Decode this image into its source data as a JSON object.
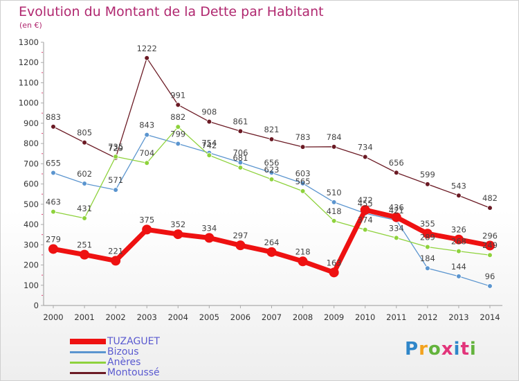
{
  "title": "Evolution du Montant de la Dette par Habitant",
  "unit": "(en €)",
  "logo": {
    "text": "Proxiti",
    "colors": [
      "#2f86c9",
      "#f3a21e",
      "#63b33c",
      "#e2347a",
      "#2f86c9",
      "#e2347a",
      "#63b33c"
    ]
  },
  "chart_data": {
    "type": "line",
    "title": "Evolution du Montant de la Dette par Habitant",
    "ylabel": "(en €)",
    "xlabel": "",
    "x": [
      "2000",
      "2001",
      "2002",
      "2003",
      "2004",
      "2005",
      "2006",
      "2007",
      "2008",
      "2009",
      "2010",
      "2011",
      "2012",
      "2013",
      "2014"
    ],
    "ylim": [
      0,
      1300
    ],
    "yticks": [
      "0",
      "100",
      "200",
      "300",
      "400",
      "500",
      "600",
      "700",
      "800",
      "900",
      "1000",
      "1100",
      "1200",
      "1300"
    ],
    "grid": false,
    "legend": "bottom-left",
    "series": [
      {
        "name": "Montoussé",
        "color": "#6b1a24",
        "values": [
          883,
          805,
          729,
          1222,
          991,
          908,
          861,
          821,
          783,
          784,
          734,
          656,
          599,
          543,
          482
        ]
      },
      {
        "name": "Bizous",
        "color": "#5b95cf",
        "values": [
          655,
          602,
          571,
          843,
          799,
          754,
          706,
          656,
          603,
          510,
          455,
          421,
          184,
          144,
          96
        ]
      },
      {
        "name": "Anères",
        "color": "#8ed23c",
        "values": [
          463,
          431,
          735,
          704,
          882,
          742,
          681,
          623,
          565,
          418,
          374,
          334,
          289,
          268,
          249
        ]
      },
      {
        "name": "TUZAGUET",
        "color": "#ee1111",
        "values": [
          279,
          251,
          221,
          375,
          352,
          334,
          297,
          264,
          218,
          163,
          472,
          436,
          355,
          326,
          296
        ]
      }
    ],
    "data_labels": {
      "Montoussé": [
        "883",
        "805",
        "729",
        "1222",
        "991",
        "908",
        "861",
        "821",
        "783",
        "784",
        "734",
        "656",
        "599",
        "543",
        "482"
      ],
      "Bizous": [
        "655",
        "602",
        "571",
        "843",
        "799",
        "754",
        "706",
        "656",
        "603",
        "510",
        "455",
        "421",
        "184",
        "144",
        "96"
      ],
      "Anères": [
        "463",
        "431",
        "735",
        "704",
        "882",
        "742",
        "681",
        "623",
        "565",
        "418",
        "374",
        "334",
        "289",
        "268",
        "249"
      ],
      "TUZAGUET": [
        "279",
        "251",
        "221",
        "375",
        "352",
        "334",
        "297",
        "264",
        "218",
        "163",
        "472",
        "436",
        "355",
        "326",
        "296"
      ]
    }
  },
  "legend": [
    {
      "label": "TUZAGUET",
      "color": "#ee1111"
    },
    {
      "label": "Bizous",
      "color": "#5b95cf"
    },
    {
      "label": "Anères",
      "color": "#8ed23c"
    },
    {
      "label": "Montoussé",
      "color": "#6b1a24"
    }
  ]
}
